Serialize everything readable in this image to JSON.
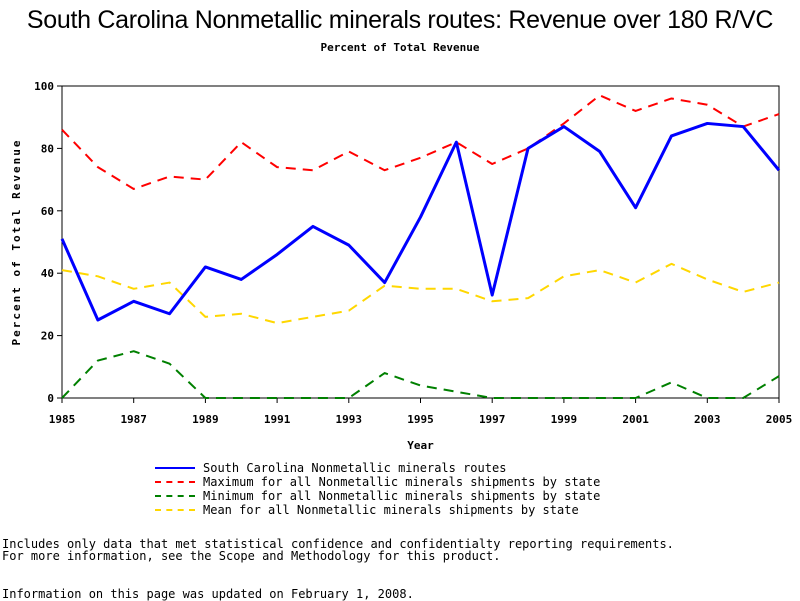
{
  "header": {
    "title": "South Carolina Nonmetallic minerals routes: Revenue over 180 R/VC",
    "subtitle": "Percent of Total Revenue"
  },
  "notes": {
    "line1": "Includes only data that met statistical confidence and confidentialty reporting requirements.",
    "line2": "For more information, see the Scope and Methodology for this product.",
    "updated": "Information on this page was updated on February 1, 2008."
  },
  "chart_data": {
    "type": "line",
    "xlabel": "Year",
    "ylabel": "Percent of Total Revenue",
    "xlim": [
      1985,
      2005
    ],
    "ylim": [
      0,
      100
    ],
    "x_ticks": [
      "1985",
      "1987",
      "1989",
      "1991",
      "1993",
      "1995",
      "1997",
      "1999",
      "2001",
      "2003",
      "2005"
    ],
    "y_ticks": [
      "0",
      "20",
      "40",
      "60",
      "80",
      "100"
    ],
    "grid": false,
    "legend_position": "bottom",
    "x": [
      1985,
      1986,
      1987,
      1988,
      1989,
      1990,
      1991,
      1992,
      1993,
      1994,
      1995,
      1996,
      1997,
      1998,
      1999,
      2000,
      2001,
      2002,
      2003,
      2004,
      2005
    ],
    "series": [
      {
        "name": "South Carolina Nonmetallic minerals routes",
        "color": "#0000ff",
        "style": "solid",
        "values": [
          51,
          25,
          31,
          27,
          42,
          38,
          46,
          55,
          49,
          37,
          58,
          82,
          33,
          80,
          87,
          79,
          61,
          84,
          88,
          87,
          73
        ]
      },
      {
        "name": "Maximum for all Nonmetallic minerals shipments by state",
        "color": "#ff0000",
        "style": "dashed",
        "values": [
          86,
          74,
          67,
          71,
          70,
          82,
          74,
          73,
          79,
          73,
          77,
          82,
          75,
          80,
          88,
          97,
          92,
          96,
          94,
          87,
          91
        ]
      },
      {
        "name": "Minimum for all Nonmetallic minerals shipments by state",
        "color": "#008000",
        "style": "dashed",
        "values": [
          0,
          12,
          15,
          11,
          0,
          0,
          0,
          0,
          0,
          8,
          4,
          2,
          0,
          0,
          0,
          0,
          0,
          5,
          0,
          0,
          7
        ]
      },
      {
        "name": "Mean for all Nonmetallic minerals shipments by state",
        "color": "#ffd700",
        "style": "dashed",
        "values": [
          41,
          39,
          35,
          37,
          26,
          27,
          24,
          26,
          28,
          36,
          35,
          35,
          31,
          32,
          39,
          41,
          37,
          43,
          38,
          34,
          37
        ]
      }
    ]
  }
}
